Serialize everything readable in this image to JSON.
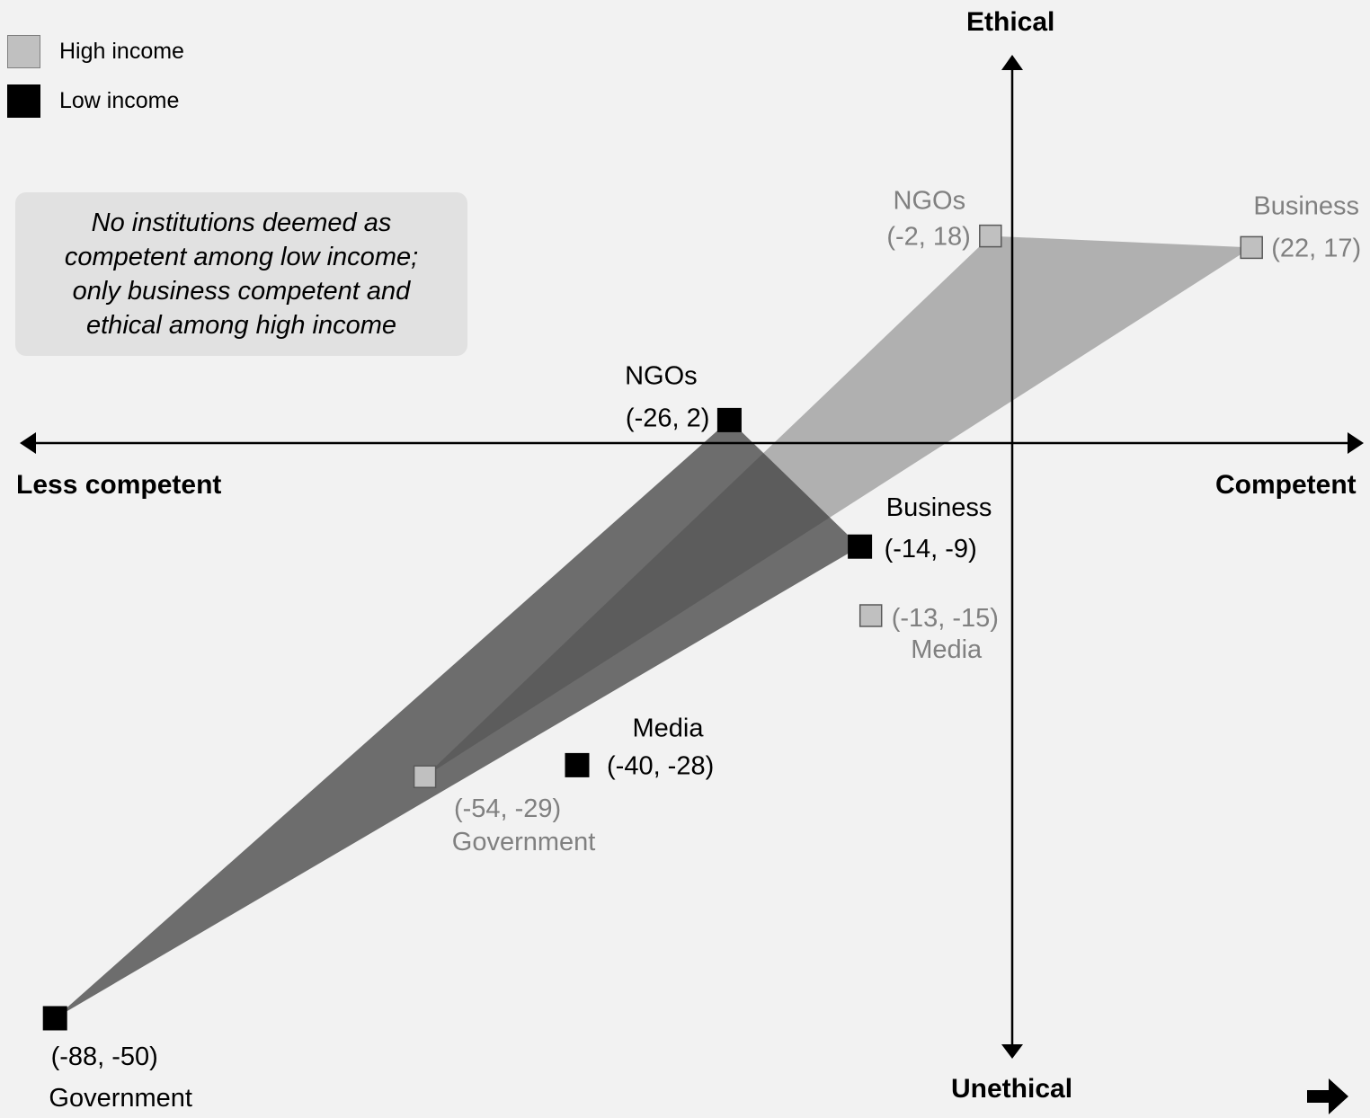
{
  "chart_data": {
    "type": "scatter",
    "title": "",
    "xlabel": "",
    "ylabel": "",
    "xlim": [
      -91,
      26
    ],
    "ylim": [
      -53,
      33
    ],
    "axis_labels": {
      "left": "Less competent",
      "right": "Competent",
      "top": "Ethical",
      "bottom": "Unethical"
    },
    "grid": false,
    "legend_position": "top-left",
    "series": [
      {
        "name": "High income",
        "color": "#c0c0c0",
        "points": [
          {
            "institution": "NGOs",
            "x": -2,
            "y": 18,
            "coord_label": "(-2, 18)"
          },
          {
            "institution": "Business",
            "x": 22,
            "y": 17,
            "coord_label": "(22, 17)"
          },
          {
            "institution": "Media",
            "x": -13,
            "y": -15,
            "coord_label": "(-13, -15)"
          },
          {
            "institution": "Government",
            "x": -54,
            "y": -29,
            "coord_label": "(-54, -29)"
          }
        ]
      },
      {
        "name": "Low income",
        "color": "#000000",
        "points": [
          {
            "institution": "NGOs",
            "x": -26,
            "y": 2,
            "coord_label": "(-26, 2)"
          },
          {
            "institution": "Business",
            "x": -14,
            "y": -9,
            "coord_label": "(-14, -9)"
          },
          {
            "institution": "Media",
            "x": -40,
            "y": -28,
            "coord_label": "(-40, -28)"
          },
          {
            "institution": "Government",
            "x": -88,
            "y": -50,
            "coord_label": "(-88, -50)"
          }
        ]
      }
    ],
    "annotation": "No institutions deemed as competent among low income; only business competent and ethical among high income"
  },
  "legend": [
    {
      "label": "High income",
      "color": "#c0c0c0"
    },
    {
      "label": "Low income",
      "color": "#000000"
    }
  ],
  "note": "No institutions deemed as competent among low income; only business competent and ethical among high income",
  "colors": {
    "high_income_label": "#808080",
    "high_income_polygon": "#999999",
    "low_income_polygon": "#404040",
    "background": "#f2f2f2",
    "note_background": "#e1e1e1"
  },
  "icons": {
    "corner": "bent-arrow-icon"
  }
}
